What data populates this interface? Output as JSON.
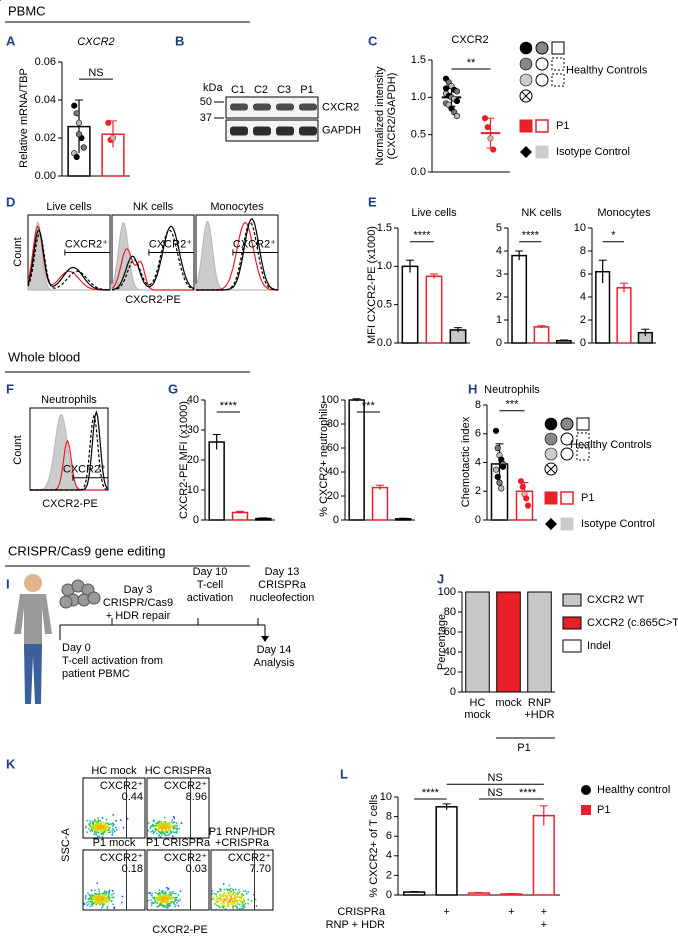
{
  "sections": {
    "pbmc": "PBMC",
    "whole_blood": "Whole blood",
    "crispr": "CRISPR/Cas9 gene editing"
  },
  "legend": {
    "healthy": "Healthy Controls",
    "p1": "P1",
    "isotype": "Isotype Control"
  },
  "A": {
    "letter": "A",
    "type": "bar",
    "title": "CXCR2",
    "ylabel": "Relative mRNA/TBP",
    "ylim": [
      0,
      0.06
    ],
    "yticks": [
      {
        "value": 0,
        "label": "0.00"
      },
      0.02,
      0.04,
      0.06
    ],
    "sig": [
      "NS"
    ],
    "bars": [
      {
        "value": 0.026,
        "error": 0.014,
        "color": "#000000",
        "fill": "#ffffff",
        "points": [
          0.037,
          0.033,
          0.028,
          0.02,
          0.015,
          0.012,
          0.01,
          0.022
        ]
      },
      {
        "value": 0.022,
        "error": 0.007,
        "color": "#e8202a",
        "fill": "#ffffff",
        "points": [
          0.028,
          0.019,
          0.02
        ]
      }
    ]
  },
  "B": {
    "letter": "B",
    "kda": "kDa",
    "markers": [
      "50",
      "37"
    ],
    "lanes": [
      "C1",
      "C2",
      "C3",
      "P1"
    ],
    "proteins": [
      "CXCR2",
      "GAPDH"
    ]
  },
  "C": {
    "letter": "C",
    "type": "scatter-mean",
    "title": "CXCR2",
    "ylabel": [
      "Normalized intensity",
      "(CXCR2/GAPDH)"
    ],
    "ylim": [
      0,
      1.5
    ],
    "yticks": [
      {
        "value": 0,
        "label": "0.0"
      },
      0.5,
      {
        "value": 1,
        "label": "1.0"
      },
      1.5
    ],
    "sig": [
      "**"
    ],
    "bars": [
      {
        "value": 1.0,
        "error": 0.12,
        "color": "#000000",
        "points": [
          1.25,
          1.2,
          1.15,
          1.1,
          1.08,
          1.05,
          1.02,
          1.0,
          0.98,
          0.95,
          0.92,
          0.9,
          0.85,
          0.8,
          0.75,
          1.12
        ]
      },
      {
        "value": 0.52,
        "error": 0.2,
        "color": "#e8202a",
        "points": [
          0.72,
          0.6,
          0.45,
          0.3
        ]
      }
    ]
  },
  "D": {
    "letter": "D",
    "titles": [
      "Live cells",
      "NK cells",
      "Monocytes"
    ],
    "gate": "CXCR2⁺",
    "ylabel": "Count",
    "xlabel": "CXCR2-PE"
  },
  "E": {
    "letter": "E",
    "ylabel": "MFI CXCR2-PE (x1000)",
    "plots": [
      {
        "type": "bar",
        "title": "Live cells",
        "ylim": [
          0,
          1.5
        ],
        "yticks": [
          {
            "value": 0,
            "label": "0.0"
          },
          0.5,
          {
            "value": 1,
            "label": "1.0"
          },
          1.5
        ],
        "sig": [
          "****"
        ],
        "bars": [
          {
            "value": 1.0,
            "error": 0.08,
            "color": "#000000",
            "fill": "#ffffff"
          },
          {
            "value": 0.87,
            "error": 0.03,
            "color": "#e8202a",
            "fill": "#ffffff"
          },
          {
            "value": 0.17,
            "error": 0.03,
            "color": "#000000",
            "fill": "#c8c8c8"
          }
        ]
      },
      {
        "type": "bar",
        "title": "NK cells",
        "ylim": [
          0,
          5
        ],
        "yticks": [
          0,
          1,
          2,
          3,
          4,
          5
        ],
        "sig": [
          "****"
        ],
        "bars": [
          {
            "value": 3.8,
            "error": 0.2,
            "color": "#000000",
            "fill": "#ffffff"
          },
          {
            "value": 0.7,
            "error": 0.05,
            "color": "#e8202a",
            "fill": "#ffffff"
          },
          {
            "value": 0.1,
            "error": 0.03,
            "color": "#000000",
            "fill": "#c8c8c8"
          }
        ]
      },
      {
        "type": "bar",
        "title": "Monocytes",
        "ylim": [
          0,
          10
        ],
        "yticks": [
          0,
          2,
          4,
          6,
          8,
          10
        ],
        "sig": [
          "*"
        ],
        "bars": [
          {
            "value": 6.2,
            "error": 1.0,
            "color": "#000000",
            "fill": "#ffffff"
          },
          {
            "value": 4.8,
            "error": 0.4,
            "color": "#e8202a",
            "fill": "#ffffff"
          },
          {
            "value": 0.9,
            "error": 0.3,
            "color": "#000000",
            "fill": "#c8c8c8"
          }
        ]
      }
    ]
  },
  "F": {
    "letter": "F",
    "title": "Neutrophils",
    "gate": "CXCR2⁺",
    "ylabel": "Count",
    "xlabel": "CXCR2-PE"
  },
  "G": {
    "letter": "G",
    "plots": [
      {
        "type": "bar",
        "ylabel": "CXCR2-PE MFI (x1000)",
        "ylim": [
          0,
          40
        ],
        "yticks": [
          0,
          10,
          20,
          30,
          40
        ],
        "sig": [
          "****"
        ],
        "bars": [
          {
            "value": 26,
            "error": 2.5,
            "color": "#000000",
            "fill": "#ffffff"
          },
          {
            "value": 2.5,
            "error": 0.4,
            "color": "#e8202a",
            "fill": "#ffffff"
          },
          {
            "value": 0.5,
            "error": 0.2,
            "color": "#000000",
            "fill": "#c8c8c8"
          }
        ]
      },
      {
        "type": "bar",
        "ylabel": "% CXCR2+ neutrophils",
        "ylim": [
          0,
          100
        ],
        "yticks": [
          0,
          20,
          40,
          60,
          80,
          100
        ],
        "sig": [
          "***"
        ],
        "bars": [
          {
            "value": 100,
            "error": 1,
            "color": "#000000",
            "fill": "#ffffff"
          },
          {
            "value": 27,
            "error": 2,
            "color": "#e8202a",
            "fill": "#ffffff"
          },
          {
            "value": 1,
            "error": 0.5,
            "color": "#000000",
            "fill": "#c8c8c8"
          }
        ]
      }
    ]
  },
  "H": {
    "letter": "H",
    "type": "bar",
    "title": "Neutrophils",
    "ylabel": "Chemotactic index",
    "ylim": [
      0,
      8
    ],
    "yticks": [
      0,
      2,
      4,
      6,
      8
    ],
    "sig": [
      "***"
    ],
    "bars": [
      {
        "value": 3.9,
        "error": 1.4,
        "color": "#000000",
        "fill": "#ffffff",
        "points": [
          6.2,
          5.0,
          4.5,
          4.2,
          3.9,
          3.5,
          3.0,
          2.6,
          2.2,
          3.7
        ]
      },
      {
        "value": 2.0,
        "error": 0.6,
        "color": "#e8202a",
        "fill": "#ffffff",
        "points": [
          2.7,
          2.3,
          1.8,
          1.5,
          1.0
        ]
      }
    ]
  },
  "I": {
    "letter": "I",
    "start": {
      "day": "Day 0",
      "text": [
        "T-cell activation from",
        "patient PBMC"
      ]
    },
    "steps": [
      {
        "day": "Day 3",
        "text": [
          "CRISPR/Cas9",
          "+ HDR repair"
        ]
      },
      {
        "day": "Day 10",
        "text": [
          "T-cell",
          "activation"
        ]
      },
      {
        "day": "Day 13",
        "text": [
          "CRISPRa",
          "nucleofection"
        ]
      }
    ],
    "end": {
      "day": "Day 14",
      "text": [
        "Analysis"
      ]
    }
  },
  "J": {
    "letter": "J",
    "ylabel": "Percentage",
    "ylim": [
      0,
      100
    ],
    "yticks": [
      0,
      20,
      40,
      60,
      80,
      100
    ],
    "categories": [
      [
        "HC",
        "mock"
      ],
      [
        "mock"
      ],
      [
        "RNP",
        "+HDR"
      ]
    ],
    "group": "P1",
    "series": [
      {
        "name": "CXCR2 WT",
        "color": "#c8c8c8",
        "values": [
          100,
          0,
          100
        ]
      },
      {
        "name": "CXCR2 (c.865C>T)",
        "color": "#e8202a",
        "values": [
          0,
          100,
          0
        ]
      },
      {
        "name": "Indel",
        "color": "#ffffff",
        "values": [
          0,
          0,
          0
        ]
      }
    ]
  },
  "K": {
    "letter": "K",
    "gate": "CXCR2⁺",
    "ylabel": "SSC-A",
    "xlabel": "CXCR2-PE",
    "plots": [
      {
        "name": [
          "HC mock"
        ],
        "pct": "0.44"
      },
      {
        "name": [
          "HC CRISPRa"
        ],
        "pct": "8.96"
      },
      {
        "name": [
          "P1 mock"
        ],
        "pct": "0.18"
      },
      {
        "name": [
          "P1 CRISPRa"
        ],
        "pct": "0.03"
      },
      {
        "name": [
          "P1 RNP/HDR",
          "+CRISPRa"
        ],
        "pct": "7.70"
      }
    ]
  },
  "L": {
    "letter": "L",
    "type": "bar",
    "ylabel": "% CXCR2+ of T cells",
    "ylim": [
      0,
      10
    ],
    "yticks": [
      0,
      2,
      4,
      6,
      8,
      10
    ],
    "sig": [
      "****",
      "NS",
      "NS",
      "****"
    ],
    "bars": [
      {
        "value": 0.3,
        "error": 0.05,
        "color": "#000000",
        "fill": "#ffffff"
      },
      {
        "value": 9.0,
        "error": 0.3,
        "color": "#000000",
        "fill": "#ffffff"
      },
      {
        "value": 0.2,
        "error": 0.05,
        "color": "#e8202a",
        "fill": "#ffffff"
      },
      {
        "value": 0.1,
        "error": 0.05,
        "color": "#e8202a",
        "fill": "#ffffff"
      },
      {
        "value": 8.1,
        "error": 1.0,
        "color": "#e8202a",
        "fill": "#ffffff"
      }
    ],
    "legend": [
      "Healthy control",
      "P1"
    ],
    "rows": [
      {
        "name": "CRISPRa",
        "marks": [
          null,
          "+",
          null,
          "+",
          "+"
        ]
      },
      {
        "name": "RNP + HDR",
        "marks": [
          null,
          null,
          null,
          null,
          "+"
        ]
      }
    ]
  }
}
